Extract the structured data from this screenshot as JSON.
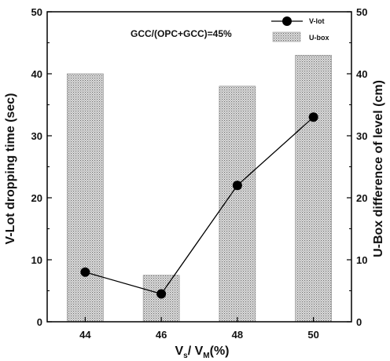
{
  "chart_data": {
    "type": "bar",
    "categories": [
      "44",
      "46",
      "48",
      "50"
    ],
    "xlabel": "Vs/ VM(%)",
    "xlabel_parts": {
      "v1": "V",
      "s1": "s",
      "mid": "/ V",
      "s2": "M",
      "tail": "(%)"
    },
    "annotation": "GCC/(OPC+GCC)=45%",
    "grid": false,
    "legend_position": "top-right",
    "y_left": {
      "label": "V-Lot dropping time (sec)",
      "ylim": [
        0,
        50
      ],
      "ticks": [
        0,
        10,
        20,
        30,
        40,
        50
      ]
    },
    "y_right": {
      "label": "U-Box difference of level (cm)",
      "ylim": [
        0,
        50
      ],
      "ticks": [
        0,
        10,
        20,
        30,
        40,
        50
      ]
    },
    "series": [
      {
        "name": "V-lot",
        "type": "line",
        "axis": "left",
        "values": [
          8,
          4.5,
          22,
          33
        ],
        "color": "#000000"
      },
      {
        "name": "U-box",
        "type": "bar",
        "axis": "right",
        "values": [
          40,
          7.5,
          38,
          43
        ],
        "color": "#bdbdbd"
      }
    ]
  }
}
